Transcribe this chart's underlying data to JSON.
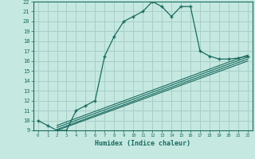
{
  "xlabel": "Humidex (Indice chaleur)",
  "xlim": [
    -0.5,
    22.5
  ],
  "ylim": [
    9,
    22
  ],
  "yticks": [
    9,
    10,
    11,
    12,
    13,
    14,
    15,
    16,
    17,
    18,
    19,
    20,
    21,
    22
  ],
  "xticks": [
    0,
    1,
    2,
    3,
    4,
    5,
    6,
    7,
    8,
    9,
    10,
    11,
    12,
    13,
    14,
    15,
    16,
    17,
    18,
    19,
    20,
    21,
    22
  ],
  "bg_color": "#c5e8e0",
  "grid_color": "#a8cfc8",
  "line_color": "#1a6b60",
  "main_line_x": [
    0,
    1,
    2,
    3,
    4,
    5,
    6,
    7,
    8,
    9,
    10,
    11,
    12,
    13,
    14,
    15,
    16,
    17,
    18,
    19,
    20,
    21,
    22
  ],
  "main_line_y": [
    10.0,
    9.5,
    9.0,
    9.0,
    11.0,
    11.5,
    12.0,
    16.5,
    18.5,
    20.0,
    20.5,
    21.0,
    22.0,
    21.5,
    20.5,
    21.5,
    21.5,
    17.0,
    16.5,
    16.2,
    16.2,
    16.3,
    16.5
  ],
  "diag_lines": [
    {
      "x": [
        2,
        22
      ],
      "y": [
        9.0,
        16.0
      ]
    },
    {
      "x": [
        2,
        22
      ],
      "y": [
        9.1,
        16.2
      ]
    },
    {
      "x": [
        2,
        22
      ],
      "y": [
        9.3,
        16.4
      ]
    },
    {
      "x": [
        2,
        22
      ],
      "y": [
        9.5,
        16.6
      ]
    }
  ]
}
